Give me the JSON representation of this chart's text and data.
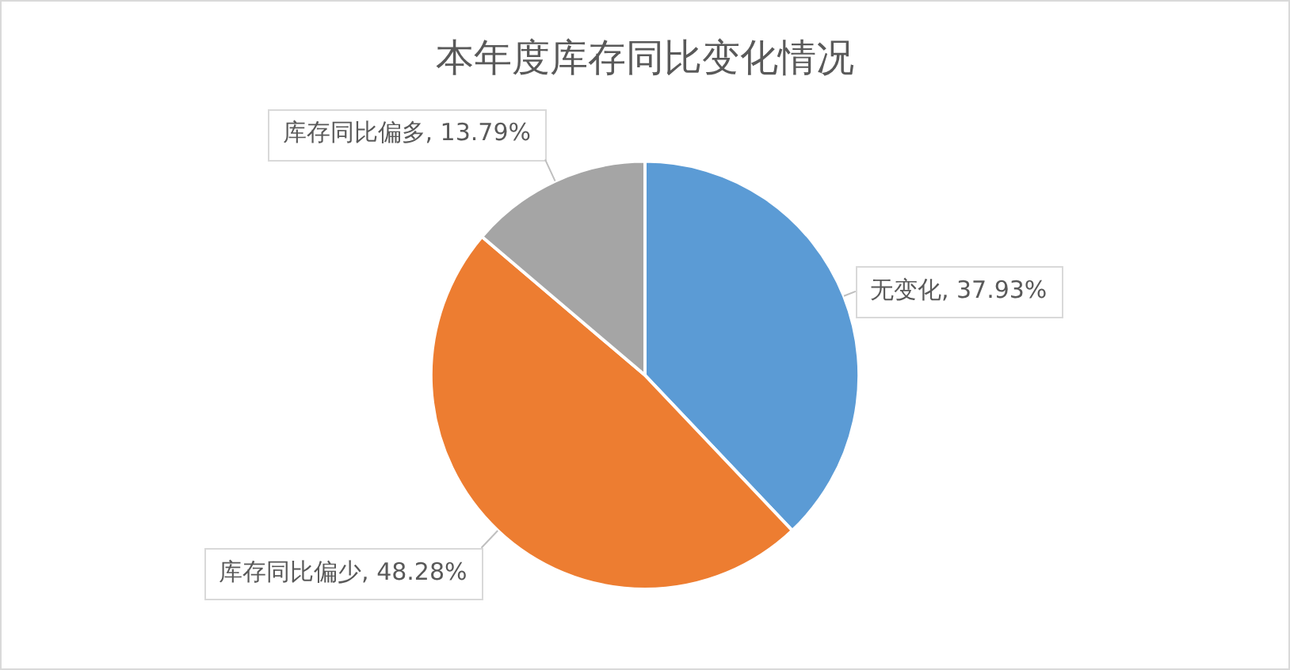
{
  "chart_data": {
    "type": "pie",
    "title": "本年度库存同比变化情况",
    "categories": [
      "无变化",
      "库存同比偏少",
      "库存同比偏多"
    ],
    "values": [
      37.93,
      48.28,
      13.79
    ],
    "colors": [
      "#5b9bd5",
      "#ed7d31",
      "#a5a5a5"
    ],
    "value_labels": [
      "37.93%",
      "48.28%",
      "13.79%"
    ]
  }
}
